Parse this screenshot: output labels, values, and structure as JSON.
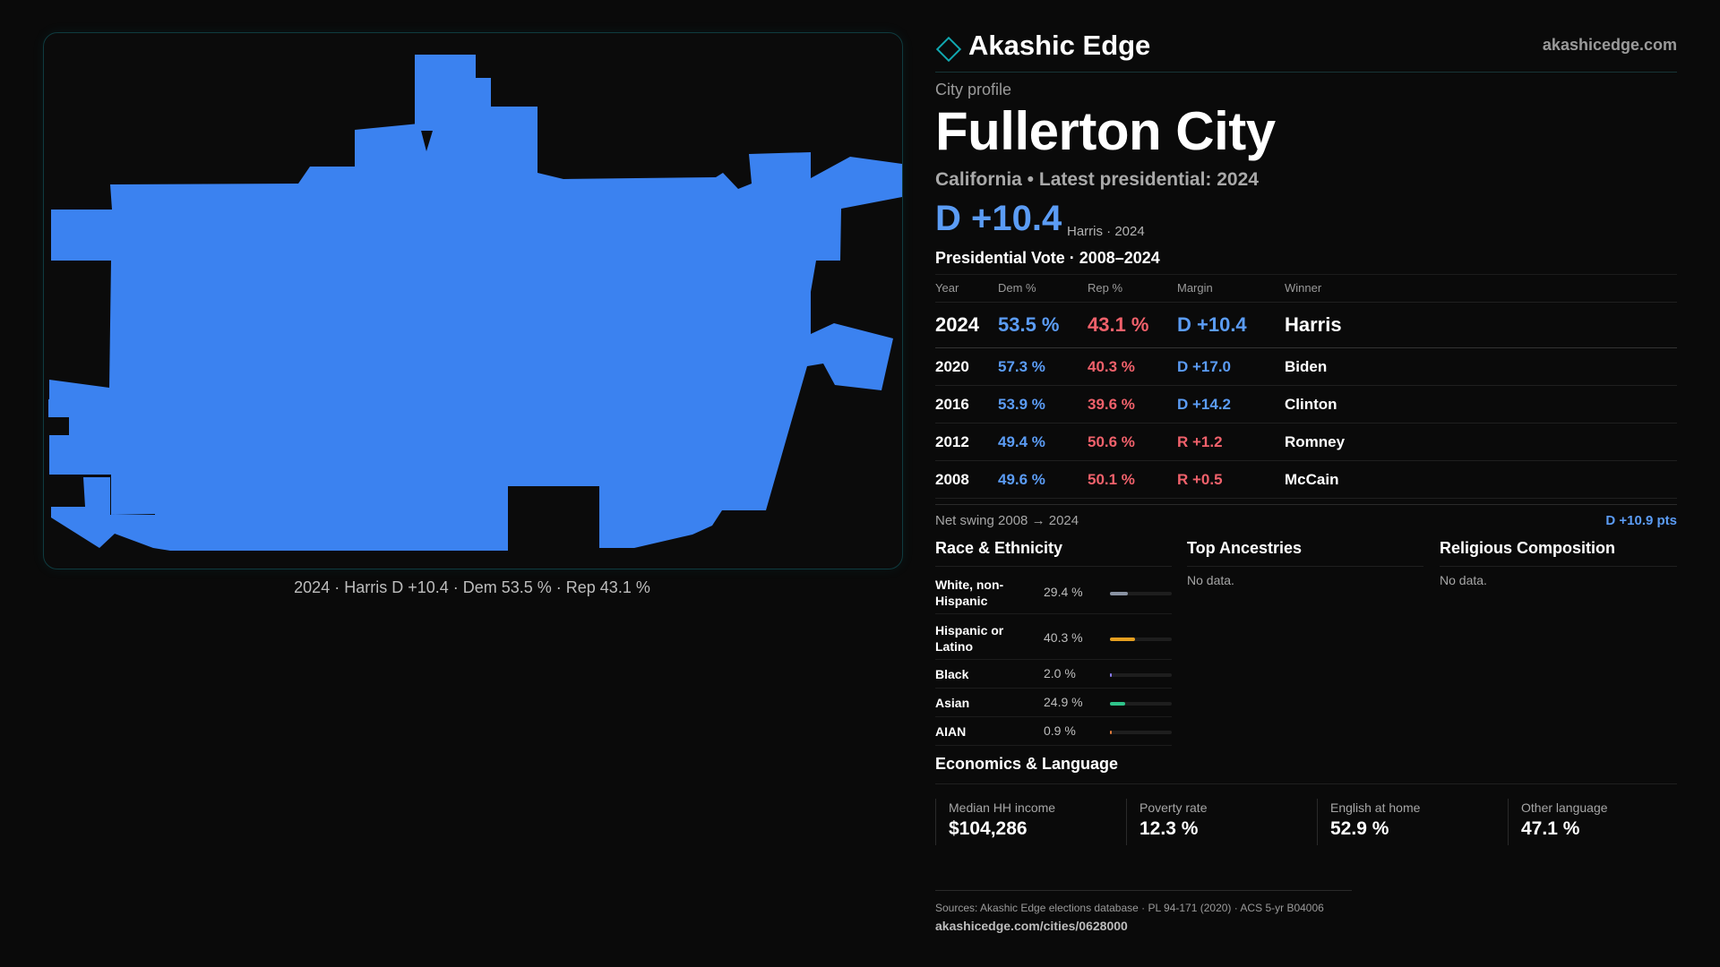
{
  "brand": {
    "name": "Akashic Edge",
    "url": "akashicedge.com"
  },
  "colors": {
    "dem": "#5b9cf5",
    "rep": "#f0616b",
    "map_fill": "#3b82f0",
    "accent": "#11a8b0"
  },
  "map": {
    "caption": "2024 · Harris D +10.4 · Dem 53.5 % · Rep 43.1 %"
  },
  "profile": {
    "kicker": "City profile",
    "title": "Fullerton City",
    "subtitle": "California • Latest presidential: 2024",
    "headline_margin": "D +10.4",
    "headline_note": "Harris · 2024"
  },
  "vote": {
    "title": "Presidential Vote · 2008–2024",
    "headers": {
      "year": "Year",
      "dem": "Dem %",
      "rep": "Rep %",
      "margin": "Margin",
      "winner": "Winner"
    },
    "rows": [
      {
        "year": "2024",
        "dem": "53.5 %",
        "rep": "43.1 %",
        "margin": "D +10.4",
        "winner": "Harris"
      },
      {
        "year": "2020",
        "dem": "57.3 %",
        "rep": "40.3 %",
        "margin": "D +17.0",
        "winner": "Biden"
      },
      {
        "year": "2016",
        "dem": "53.9 %",
        "rep": "39.6 %",
        "margin": "D +14.2",
        "winner": "Clinton"
      },
      {
        "year": "2012",
        "dem": "49.4 %",
        "rep": "50.6 %",
        "margin": "R +1.2",
        "winner": "Romney"
      },
      {
        "year": "2008",
        "dem": "49.6 %",
        "rep": "50.1 %",
        "margin": "R +0.5",
        "winner": "McCain"
      }
    ],
    "swing_label": "Net swing 2008 → 2024",
    "swing_value": "D +10.9 pts"
  },
  "race": {
    "title": "Race & Ethnicity",
    "items": [
      {
        "label": "White, non-Hispanic",
        "pct": "29.4 %",
        "value": 29.4,
        "color": "#8a93a3"
      },
      {
        "label": "Hispanic or Latino",
        "pct": "40.3 %",
        "value": 40.3,
        "color": "#e6a020"
      },
      {
        "label": "Black",
        "pct": "2.0 %",
        "value": 2.0,
        "color": "#8b7cf6"
      },
      {
        "label": "Asian",
        "pct": "24.9 %",
        "value": 24.9,
        "color": "#2fc48a"
      },
      {
        "label": "AIAN",
        "pct": "0.9 %",
        "value": 0.9,
        "color": "#e07a3a"
      }
    ]
  },
  "ancestries": {
    "title": "Top Ancestries",
    "empty": "No data."
  },
  "religion": {
    "title": "Religious Composition",
    "empty": "No data."
  },
  "economics": {
    "title": "Economics & Language",
    "stats": [
      {
        "label": "Median HH income",
        "value": "$104,286"
      },
      {
        "label": "Poverty rate",
        "value": "12.3 %"
      },
      {
        "label": "English at home",
        "value": "52.9 %"
      },
      {
        "label": "Other language",
        "value": "47.1 %"
      }
    ]
  },
  "footer": {
    "sources": "Sources: Akashic Edge elections database · PL 94-171 (2020) · ACS 5-yr B04006",
    "url": "akashicedge.com/cities/0628000"
  }
}
